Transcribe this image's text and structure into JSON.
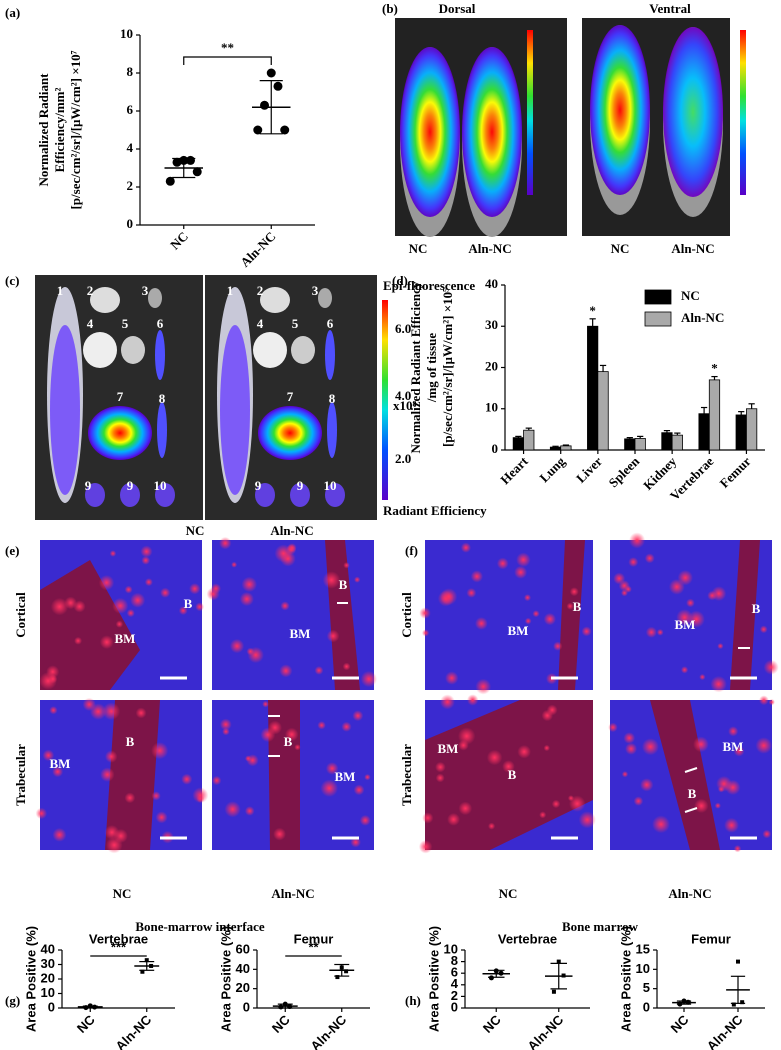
{
  "chart_data": [
    {
      "type": "dot",
      "categories": [
        "NC",
        "Aln-NC"
      ],
      "ylabel": [
        "Normalized Radiant",
        "Efficiency/mm²",
        "[p/sec/cm²/sr]/[µW/cm²] ×10⁷"
      ],
      "ylim": [
        0,
        10
      ],
      "yticks": [
        0,
        2,
        4,
        6,
        8,
        10
      ],
      "points": [
        [
          3.4,
          3.4,
          3.3,
          2.8,
          2.3
        ],
        [
          8.0,
          7.3,
          6.3,
          5.0,
          5.0
        ]
      ],
      "mean": [
        3.0,
        6.2
      ],
      "error": [
        0.5,
        1.4
      ],
      "significance": "**",
      "color": "#000000"
    },
    {
      "type": "bar",
      "categories": [
        "Heart",
        "Lung",
        "Liver",
        "Spleen",
        "Kidney",
        "Vertebrae",
        "Femur"
      ],
      "ylabel": [
        "Normalized Radiant Efficiency",
        "/mg of tissue",
        "[p/sec/cm²/sr]/[µW/cm²] ×10⁵"
      ],
      "ylim": [
        0,
        40
      ],
      "yticks": [
        0,
        10,
        20,
        30,
        40
      ],
      "series": [
        {
          "name": "NC",
          "color": "#000000",
          "values": [
            3.0,
            0.7,
            30,
            2.7,
            4.2,
            8.8,
            8.5
          ],
          "error": [
            0.3,
            0.2,
            1.8,
            0.3,
            0.5,
            1.5,
            0.8
          ]
        },
        {
          "name": "Aln-NC",
          "color": "#a9a9a9",
          "values": [
            4.8,
            1.0,
            19,
            2.8,
            3.6,
            17,
            10
          ],
          "error": [
            0.5,
            0.2,
            1.5,
            0.5,
            0.5,
            0.8,
            1.2
          ]
        }
      ],
      "annotations": [
        "*",
        "*"
      ],
      "legend": "upper-right"
    },
    {
      "type": "dot",
      "title": "Vertebrae",
      "categories": [
        "NC",
        "Aln-NC"
      ],
      "ylabel": "Area Positive (%)",
      "ylim": [
        0,
        40
      ],
      "yticks": [
        0,
        10,
        20,
        30,
        40
      ],
      "points": [
        [
          1.5,
          0.6,
          0.3
        ],
        [
          33,
          29,
          25
        ]
      ],
      "mean": [
        0.8,
        29
      ],
      "error": [
        0.5,
        3
      ],
      "significance": "***",
      "color": "#000000"
    },
    {
      "type": "dot",
      "title": "Femur",
      "categories": [
        "NC",
        "Aln-NC"
      ],
      "ylabel": "Area Positive (%)",
      "ylim": [
        0,
        60
      ],
      "yticks": [
        0,
        20,
        40,
        60
      ],
      "points": [
        [
          4,
          1.5,
          1
        ],
        [
          42,
          38,
          32
        ]
      ],
      "mean": [
        2,
        39
      ],
      "error": [
        2,
        6
      ],
      "significance": "**",
      "color": "#000000"
    },
    {
      "type": "dot",
      "title": "Vertebrae",
      "categories": [
        "NC",
        "Aln-NC"
      ],
      "ylabel": "Area Positive (%)",
      "ylim": [
        0,
        10
      ],
      "yticks": [
        0,
        2,
        4,
        6,
        8,
        10
      ],
      "points": [
        [
          6.4,
          6.0,
          5.2
        ],
        [
          8.0,
          5.6,
          2.8
        ]
      ],
      "mean": [
        5.9,
        5.5
      ],
      "error": [
        0.6,
        2.2
      ],
      "color": "#000000"
    },
    {
      "type": "dot",
      "title": "Femur",
      "categories": [
        "NC",
        "Aln-NC"
      ],
      "ylabel": "Area Positive (%)",
      "ylim": [
        0,
        15
      ],
      "yticks": [
        0,
        5,
        10,
        15
      ],
      "points": [
        [
          1.8,
          1.5,
          1.0
        ],
        [
          12,
          1.5,
          0.9
        ]
      ],
      "mean": [
        1.4,
        4.7
      ],
      "error": [
        0.4,
        3.5
      ],
      "color": "#000000"
    }
  ],
  "figures": {
    "panel_labels": [
      "(a)",
      "(b)",
      "(c)",
      "(d)",
      "(e)",
      "(f)",
      "(g)",
      "(h)"
    ],
    "b": {
      "titles": [
        "Dorsal",
        "Ventral"
      ],
      "groups": [
        "NC",
        "Aln-NC",
        "NC",
        "Aln-NC"
      ]
    },
    "c": {
      "organ_numbers": [
        "1",
        "2",
        "3",
        "4",
        "5",
        "6",
        "7",
        "8",
        "9",
        "9",
        "10"
      ],
      "groups": [
        "NC",
        "Aln-NC"
      ],
      "colorbar_title": "Epi-fluorescence",
      "colorbar_ticks": [
        "6.0",
        "4.0",
        "2.0"
      ],
      "colorbar_unit": "x10⁸",
      "colorbar_label": "Radiant Efficiency"
    },
    "e": {
      "rows": [
        "Cortical",
        "Trabecular"
      ],
      "groups": [
        "NC",
        "Aln-NC"
      ],
      "labels": [
        [
          "B",
          "BM"
        ],
        [
          "B",
          "BM"
        ],
        [
          "B",
          "BM"
        ],
        [
          "B",
          "BM"
        ]
      ]
    },
    "f": {
      "groups": [
        "NC",
        "Aln-NC"
      ],
      "labels": [
        [
          "B",
          "BM"
        ],
        [
          "B",
          "BM"
        ],
        [
          "BM",
          "B"
        ],
        [
          "BM",
          "B"
        ]
      ]
    },
    "g_title": "Bone-marrow interface",
    "h_title": "Bone marrow"
  }
}
